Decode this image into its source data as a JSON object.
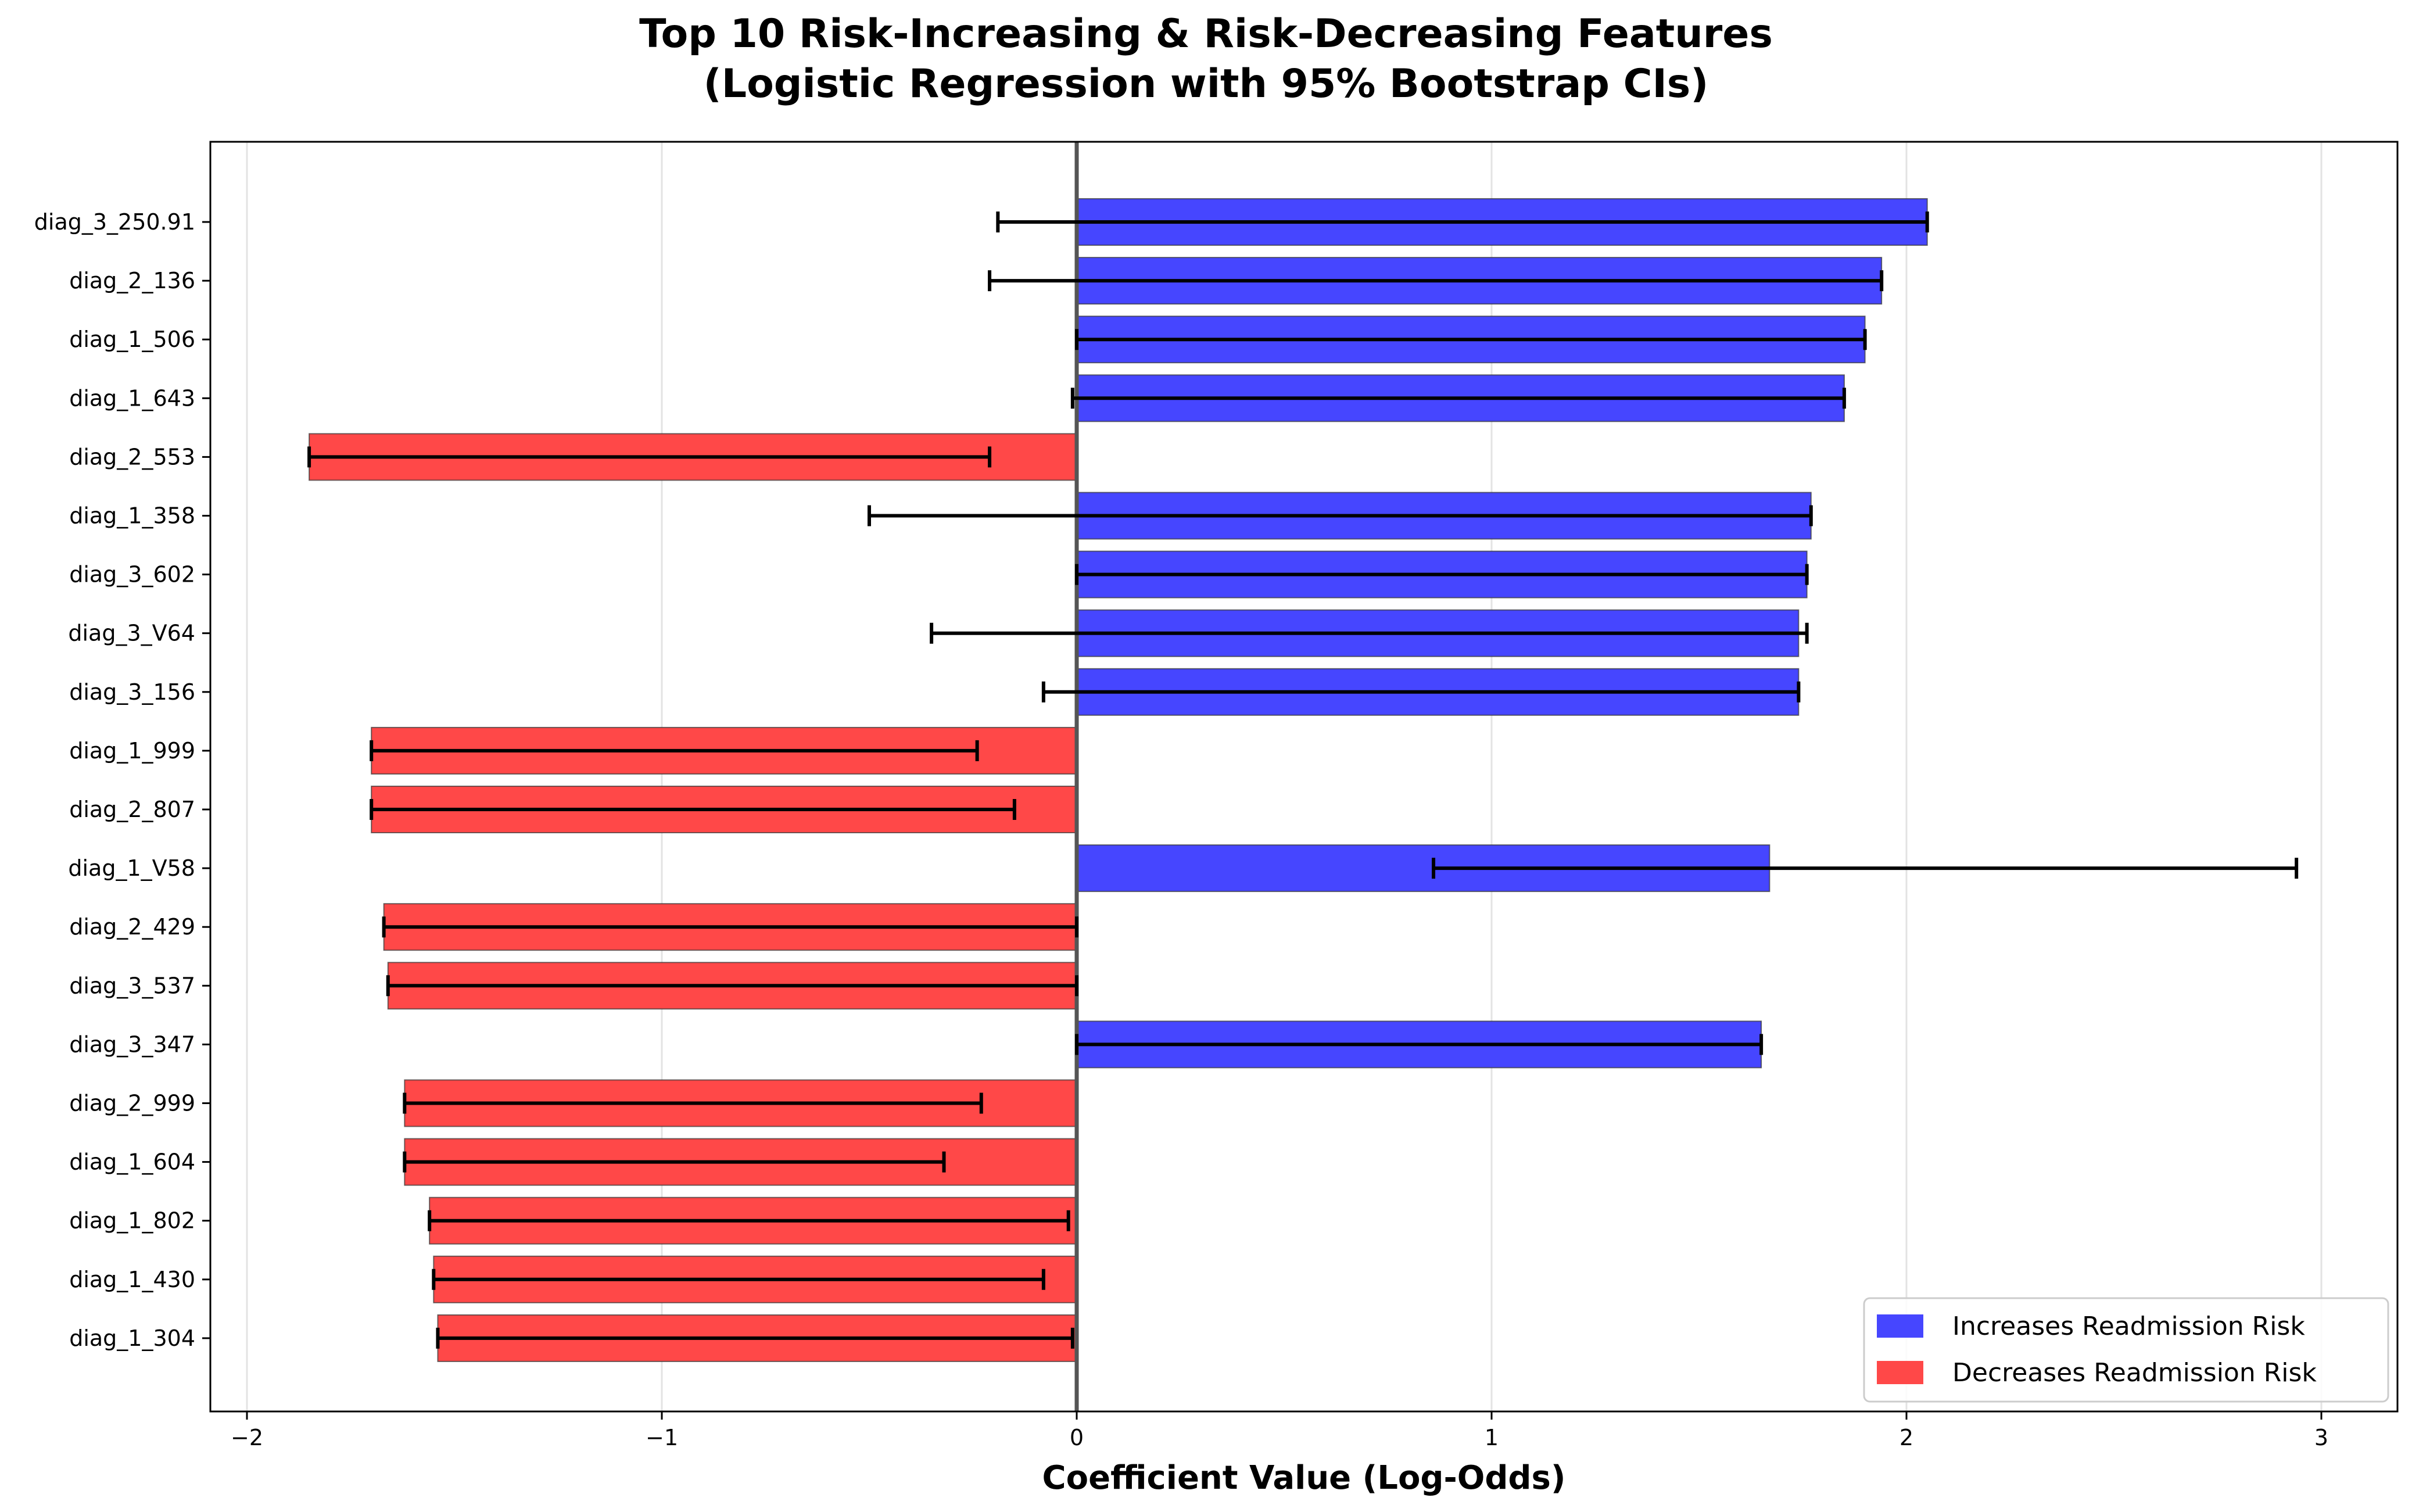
{
  "chart_data": {
    "type": "bar",
    "orientation": "horizontal",
    "title": "Top 10 Risk-Increasing & Risk-Decreasing Features\n(Logistic Regression with 95% Bootstrap CIs)",
    "title_lines": [
      "Top 10 Risk-Increasing & Risk-Decreasing Features",
      "(Logistic Regression with 95% Bootstrap CIs)"
    ],
    "xlabel": "Coefficient Value (Log-Odds)",
    "ylabel": "",
    "xlim": [
      -2.1,
      3.2
    ],
    "xticks": [
      -2,
      -1,
      0,
      1,
      2,
      3
    ],
    "xtick_labels": [
      "−2",
      "−1",
      "0",
      "1",
      "2",
      "3"
    ],
    "grid": "x-axis vertical gridlines",
    "legend_placement": "lower-right",
    "colors": {
      "increase": "#4646FF",
      "decrease": "#FF4848",
      "zero_line": "#555555"
    },
    "legend": [
      {
        "label": "Increases Readmission Risk",
        "color": "#4646FF"
      },
      {
        "label": "Decreases Readmission Risk",
        "color": "#FF4848"
      }
    ],
    "categories": [
      "diag_3_250.91",
      "diag_2_136",
      "diag_1_506",
      "diag_1_643",
      "diag_2_553",
      "diag_1_358",
      "diag_3_602",
      "diag_3_V64",
      "diag_3_156",
      "diag_1_999",
      "diag_2_807",
      "diag_1_V58",
      "diag_2_429",
      "diag_3_537",
      "diag_3_347",
      "diag_2_999",
      "diag_1_604",
      "diag_1_802",
      "diag_1_430",
      "diag_1_304"
    ],
    "values": [
      2.05,
      1.94,
      1.9,
      1.85,
      -1.85,
      1.77,
      1.76,
      1.74,
      1.74,
      -1.7,
      -1.7,
      1.67,
      -1.67,
      -1.66,
      1.65,
      -1.62,
      -1.62,
      -1.56,
      -1.55,
      -1.54
    ],
    "ci_lower": [
      -0.19,
      -0.21,
      0.0,
      -0.01,
      -1.85,
      -0.5,
      0.0,
      -0.35,
      -0.08,
      -1.7,
      -1.7,
      0.86,
      -1.67,
      -1.66,
      0.0,
      -1.62,
      -1.62,
      -1.56,
      -1.55,
      -1.54
    ],
    "ci_upper": [
      2.05,
      1.94,
      1.9,
      1.85,
      -0.21,
      1.77,
      1.76,
      1.76,
      1.74,
      -0.24,
      -0.15,
      2.94,
      0.0,
      0.0,
      1.65,
      -0.23,
      -0.32,
      -0.02,
      -0.08,
      -0.01
    ]
  }
}
